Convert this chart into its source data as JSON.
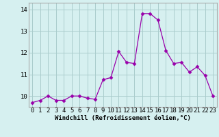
{
  "x": [
    0,
    1,
    2,
    3,
    4,
    5,
    6,
    7,
    8,
    9,
    10,
    11,
    12,
    13,
    14,
    15,
    16,
    17,
    18,
    19,
    20,
    21,
    22,
    23
  ],
  "y": [
    9.7,
    9.8,
    10.0,
    9.8,
    9.8,
    10.0,
    10.0,
    9.9,
    9.85,
    10.75,
    10.85,
    12.05,
    11.55,
    11.5,
    13.8,
    13.8,
    13.5,
    12.1,
    11.5,
    11.55,
    11.1,
    11.35,
    10.95,
    10.0
  ],
  "line_color": "#9900aa",
  "marker": "D",
  "marker_size": 2.5,
  "bg_color": "#d6f0f0",
  "grid_color": "#aacccc",
  "xlabel": "Windchill (Refroidissement éolien,°C)",
  "xlabel_fontsize": 6.5,
  "tick_fontsize": 6.5,
  "ylim": [
    9.5,
    14.3
  ],
  "yticks": [
    10,
    11,
    12,
    13,
    14
  ],
  "xticks": [
    0,
    1,
    2,
    3,
    4,
    5,
    6,
    7,
    8,
    9,
    10,
    11,
    12,
    13,
    14,
    15,
    16,
    17,
    18,
    19,
    20,
    21,
    22,
    23
  ]
}
